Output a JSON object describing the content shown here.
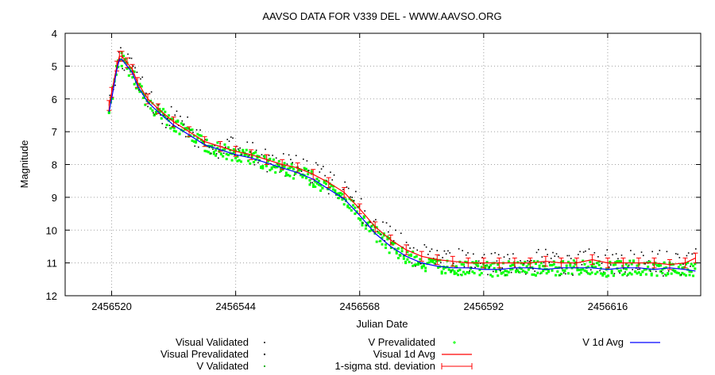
{
  "chart_data": {
    "type": "scatter",
    "title": "AAVSO DATA FOR V339 DEL - WWW.AAVSO.ORG",
    "xlabel": "Julian Date",
    "ylabel": "Magnitude",
    "xlim": [
      2456511,
      2456634
    ],
    "ylim": [
      4,
      12
    ],
    "y_inverted": true,
    "grid": true,
    "x_ticks": [
      2456520,
      2456544,
      2456568,
      2456592,
      2456616
    ],
    "x_tick_labels": [
      "2456520",
      "2456544",
      "2456568",
      "2456592",
      "2456616"
    ],
    "y_ticks": [
      4,
      5,
      6,
      7,
      8,
      9,
      10,
      11,
      12
    ],
    "y_tick_labels": [
      "4",
      "5",
      "6",
      "7",
      "8",
      "9",
      "10",
      "11",
      "12"
    ],
    "legend_placement": "bottom",
    "legend": [
      {
        "name": "Visual Validated",
        "style": "dot",
        "color": "#4a4a4a"
      },
      {
        "name": "Visual Prevalidated",
        "style": "dot",
        "color": "#000000"
      },
      {
        "name": "V Validated",
        "style": "dot",
        "color": "#00b000"
      },
      {
        "name": "V Prevalidated",
        "style": "plus",
        "color": "#00ff00"
      },
      {
        "name": "Visual 1d Avg",
        "style": "line",
        "color": "#ff0000"
      },
      {
        "name": "1-sigma std. deviation",
        "style": "errorbar",
        "color": "#ff0000"
      },
      {
        "name": "V 1d Avg",
        "style": "line",
        "color": "#0000ff"
      }
    ],
    "series": [
      {
        "name": "Visual 1d Avg",
        "color": "#ff0000",
        "x": [
          2456519.5,
          2456520,
          2456521,
          2456521.5,
          2456522,
          2456523,
          2456524,
          2456525,
          2456527,
          2456529,
          2456532,
          2456535,
          2456538,
          2456541,
          2456544,
          2456547,
          2456550,
          2456553,
          2456556,
          2456559,
          2456562,
          2456565,
          2456568,
          2456571,
          2456574,
          2456577,
          2456580,
          2456583,
          2456586,
          2456589,
          2456592,
          2456595,
          2456598,
          2456601,
          2456604,
          2456607,
          2456610,
          2456613,
          2456616,
          2456619,
          2456622,
          2456625,
          2456628,
          2456631,
          2456633
        ],
        "y": [
          6.2,
          5.8,
          5.0,
          4.7,
          4.7,
          4.9,
          5.1,
          5.5,
          6.0,
          6.3,
          6.7,
          7.0,
          7.3,
          7.45,
          7.6,
          7.7,
          7.85,
          8.0,
          8.1,
          8.3,
          8.55,
          8.85,
          9.35,
          9.9,
          10.3,
          10.6,
          10.8,
          10.9,
          10.95,
          11.0,
          11.0,
          11.0,
          11.0,
          11.0,
          10.95,
          11.0,
          11.0,
          10.9,
          11.0,
          11.0,
          11.0,
          11.0,
          11.05,
          11.0,
          10.85
        ]
      },
      {
        "name": "V 1d Avg",
        "color": "#0000ff",
        "x": [
          2456519.5,
          2456520,
          2456521,
          2456521.5,
          2456522,
          2456523,
          2456524,
          2456525,
          2456527,
          2456529,
          2456532,
          2456535,
          2456538,
          2456541,
          2456544,
          2456547,
          2456550,
          2456553,
          2456556,
          2456559,
          2456562,
          2456565,
          2456568,
          2456571,
          2456574,
          2456577,
          2456580,
          2456583,
          2456586,
          2456589,
          2456592,
          2456595,
          2456598,
          2456601,
          2456604,
          2456607,
          2456610,
          2456613,
          2456616,
          2456619,
          2456622,
          2456625,
          2456628,
          2456631,
          2456633
        ],
        "y": [
          6.4,
          6.0,
          5.1,
          4.8,
          4.8,
          5.0,
          5.2,
          5.6,
          6.1,
          6.4,
          6.8,
          7.1,
          7.4,
          7.55,
          7.7,
          7.8,
          7.95,
          8.1,
          8.25,
          8.45,
          8.75,
          9.05,
          9.55,
          10.1,
          10.5,
          10.8,
          11.0,
          11.1,
          11.15,
          11.15,
          11.2,
          11.2,
          11.15,
          11.15,
          11.2,
          11.15,
          11.15,
          11.15,
          11.2,
          11.15,
          11.15,
          11.2,
          11.15,
          11.2,
          11.25
        ]
      }
    ]
  }
}
